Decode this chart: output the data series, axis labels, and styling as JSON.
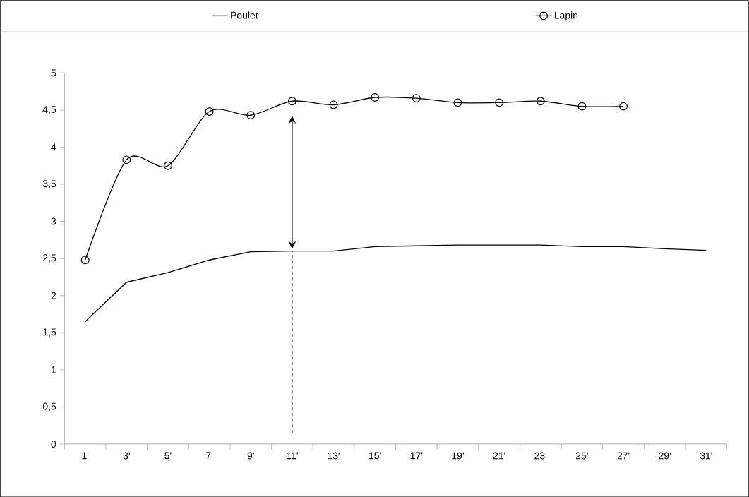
{
  "chart_data": {
    "type": "line",
    "categories": [
      "1'",
      "3'",
      "5'",
      "7'",
      "9'",
      "11'",
      "13'",
      "15'",
      "17'",
      "19'",
      "21'",
      "23'",
      "25'",
      "27'",
      "29'",
      "31'"
    ],
    "series": [
      {
        "name": "Poulet",
        "color": "#000000",
        "marker": "none",
        "values": [
          1.65,
          2.18,
          2.31,
          2.48,
          2.59,
          2.6,
          2.6,
          2.66,
          2.67,
          2.68,
          2.68,
          2.68,
          2.66,
          2.66,
          2.63,
          2.61
        ]
      },
      {
        "name": "Lapin",
        "color": "#000000",
        "marker": "circle",
        "values": [
          2.48,
          3.83,
          3.75,
          4.48,
          4.43,
          4.62,
          4.57,
          4.67,
          4.66,
          4.6,
          4.6,
          4.62,
          4.55,
          4.55,
          null,
          null
        ]
      }
    ],
    "ylim": [
      0,
      5
    ],
    "yticks": [
      0,
      {
        "value": 0.5,
        "label": "0,5"
      },
      1,
      {
        "value": 1.5,
        "label": "1,5"
      },
      2,
      {
        "value": 2.5,
        "label": "2,5"
      },
      3,
      {
        "value": 3.5,
        "label": "3,5"
      },
      4,
      {
        "value": 4.5,
        "label": "4,5"
      },
      5
    ],
    "grid": false,
    "legend": "top",
    "line_style": "solid"
  }
}
